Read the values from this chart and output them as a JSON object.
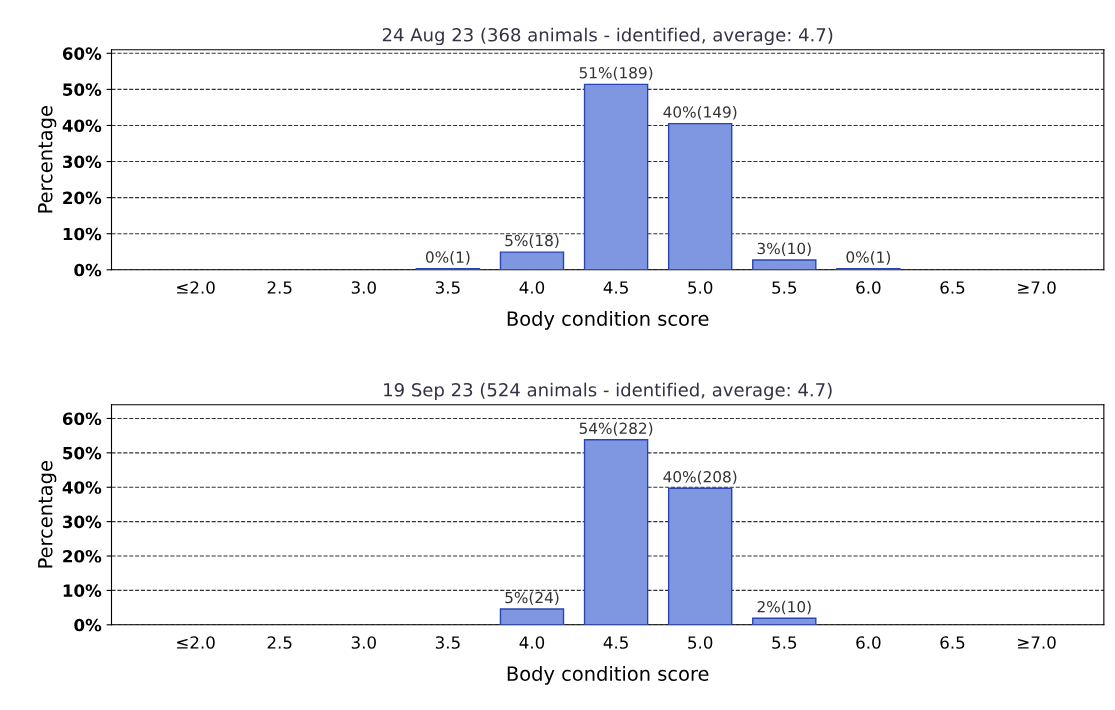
{
  "chart_data": [
    {
      "type": "bar",
      "title": "24 Aug 23 (368 animals - identified, average: 4.7)",
      "xlabel": "Body condition score",
      "ylabel": "Percentage",
      "categories": [
        "≤2.0",
        "2.5",
        "3.0",
        "3.5",
        "4.0",
        "4.5",
        "5.0",
        "5.5",
        "6.0",
        "6.5",
        "≥7.0"
      ],
      "values": [
        null,
        null,
        null,
        0.3,
        4.9,
        51.4,
        40.5,
        2.7,
        0.3,
        null,
        null
      ],
      "value_labels": [
        null,
        null,
        null,
        "0%(1)",
        "5%(18)",
        "51%(189)",
        "40%(149)",
        "3%(10)",
        "0%(1)",
        null,
        null
      ],
      "color": "#7f97e0",
      "ylim": [
        0,
        61
      ],
      "yticks": [
        {
          "value": 0,
          "label": "0%"
        },
        {
          "value": 10,
          "label": "10%"
        },
        {
          "value": 20,
          "label": "20%"
        },
        {
          "value": 30,
          "label": "30%"
        },
        {
          "value": 40,
          "label": "40%"
        },
        {
          "value": 50,
          "label": "50%"
        },
        {
          "value": 60,
          "label": "60%"
        }
      ],
      "grid": "y",
      "line_style": "dashed"
    },
    {
      "type": "bar",
      "title": "19 Sep 23 (524 animals - identified, average: 4.7)",
      "xlabel": "Body condition score",
      "ylabel": "Percentage",
      "categories": [
        "≤2.0",
        "2.5",
        "3.0",
        "3.5",
        "4.0",
        "4.5",
        "5.0",
        "5.5",
        "6.0",
        "6.5",
        "≥7.0"
      ],
      "values": [
        null,
        null,
        null,
        null,
        4.6,
        53.8,
        39.7,
        1.9,
        null,
        null,
        null
      ],
      "value_labels": [
        null,
        null,
        null,
        null,
        "5%(24)",
        "54%(282)",
        "40%(208)",
        "2%(10)",
        null,
        null,
        null
      ],
      "color": "#7f97e0",
      "ylim": [
        0,
        64
      ],
      "yticks": [
        {
          "value": 0,
          "label": "0%"
        },
        {
          "value": 10,
          "label": "10%"
        },
        {
          "value": 20,
          "label": "20%"
        },
        {
          "value": 30,
          "label": "30%"
        },
        {
          "value": 40,
          "label": "40%"
        },
        {
          "value": 50,
          "label": "50%"
        },
        {
          "value": 60,
          "label": "60%"
        }
      ],
      "grid": "y",
      "line_style": "dashed"
    }
  ]
}
